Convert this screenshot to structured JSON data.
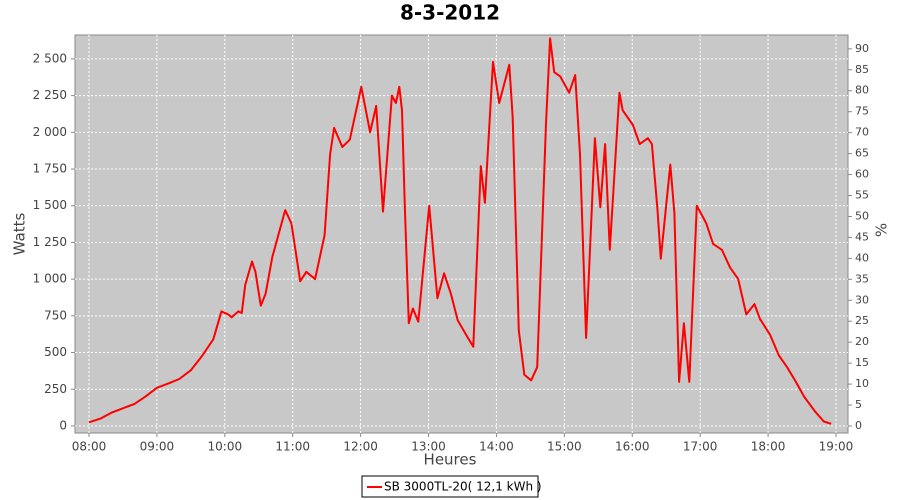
{
  "chart_data": {
    "type": "line",
    "title": "8-3-2012",
    "x_label": "Heures",
    "y_label": "Watts",
    "y2_label": "%",
    "series": [
      {
        "name": "SB 3000TL-20( 12,1 kWh )",
        "color": "#ff0000",
        "x": [
          8.0,
          8.17,
          8.33,
          8.5,
          8.67,
          8.83,
          9.0,
          9.17,
          9.33,
          9.5,
          9.67,
          9.83,
          9.9,
          9.95,
          10.05,
          10.1,
          10.2,
          10.25,
          10.3,
          10.4,
          10.45,
          10.53,
          10.6,
          10.7,
          10.89,
          10.98,
          11.11,
          11.2,
          11.33,
          11.47,
          11.55,
          11.61,
          11.73,
          11.84,
          12.01,
          12.14,
          12.23,
          12.33,
          12.46,
          12.52,
          12.57,
          12.61,
          12.65,
          12.71,
          12.77,
          12.85,
          13.01,
          13.13,
          13.23,
          13.33,
          13.43,
          13.58,
          13.66,
          13.77,
          13.83,
          13.95,
          14.04,
          14.19,
          14.24,
          14.33,
          14.41,
          14.51,
          14.6,
          14.73,
          14.79,
          14.85,
          14.94,
          15.07,
          15.16,
          15.23,
          15.32,
          15.45,
          15.53,
          15.6,
          15.67,
          15.81,
          15.86,
          16.01,
          16.11,
          16.23,
          16.29,
          16.37,
          16.42,
          16.56,
          16.62,
          16.69,
          16.76,
          16.84,
          16.95,
          17.09,
          17.19,
          17.32,
          17.44,
          17.56,
          17.68,
          17.8,
          17.88,
          18.03,
          18.16,
          18.28,
          18.41,
          18.53,
          18.69,
          18.82,
          18.93
        ],
        "values": [
          25,
          50,
          90,
          120,
          150,
          200,
          260,
          290,
          320,
          380,
          480,
          590,
          700,
          780,
          760,
          740,
          780,
          770,
          960,
          1120,
          1050,
          820,
          900,
          1150,
          1470,
          1380,
          985,
          1050,
          1000,
          1300,
          1850,
          2030,
          1900,
          1950,
          2310,
          2000,
          2180,
          1460,
          2250,
          2200,
          2310,
          2150,
          1500,
          700,
          800,
          710,
          1500,
          870,
          1040,
          900,
          720,
          600,
          540,
          1770,
          1520,
          2480,
          2200,
          2460,
          2100,
          650,
          350,
          310,
          400,
          2060,
          2640,
          2410,
          2380,
          2270,
          2390,
          1850,
          600,
          1960,
          1490,
          1920,
          1200,
          2270,
          2150,
          2050,
          1920,
          1960,
          1920,
          1480,
          1140,
          1780,
          1450,
          300,
          700,
          300,
          1500,
          1380,
          1240,
          1200,
          1080,
          1000,
          760,
          830,
          730,
          620,
          480,
          400,
          300,
          200,
          100,
          30,
          15
        ]
      }
    ],
    "xlim": [
      7.794,
      19.177
    ],
    "xticks": [
      {
        "value": 8,
        "label": "08:00"
      },
      {
        "value": 9,
        "label": "09:00"
      },
      {
        "value": 10,
        "label": "10:00"
      },
      {
        "value": 11,
        "label": "11:00"
      },
      {
        "value": 12,
        "label": "12:00"
      },
      {
        "value": 13,
        "label": "13:00"
      },
      {
        "value": 14,
        "label": "14:00"
      },
      {
        "value": 15,
        "label": "15:00"
      },
      {
        "value": 16,
        "label": "16:00"
      },
      {
        "value": 17,
        "label": "17:00"
      },
      {
        "value": 18,
        "label": "18:00"
      },
      {
        "value": 19,
        "label": "19:00"
      }
    ],
    "ylim": [
      -48,
      2663
    ],
    "yticks": [
      0,
      250,
      500,
      750,
      {
        "value": 1000,
        "label": "1 000"
      },
      {
        "value": 1250,
        "label": "1 250"
      },
      {
        "value": 1500,
        "label": "1 500"
      },
      {
        "value": 1750,
        "label": "1 750"
      },
      {
        "value": 2000,
        "label": "2 000"
      },
      {
        "value": 2250,
        "label": "2 250"
      },
      {
        "value": 2500,
        "label": "2 500"
      }
    ],
    "y2lim": [
      -1.67,
      93.3
    ],
    "y2ticks": [
      0,
      5,
      10,
      15,
      20,
      25,
      30,
      35,
      40,
      45,
      50,
      55,
      60,
      65,
      70,
      75,
      80,
      85,
      90
    ],
    "grid": true,
    "legend": "bottom"
  }
}
